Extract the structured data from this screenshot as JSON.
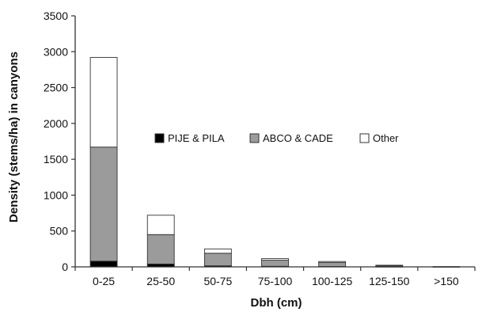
{
  "chart_data": {
    "type": "bar",
    "stacked": true,
    "title": "",
    "xlabel": "Dbh (cm)",
    "ylabel": "Density (stems/ha) in canyons",
    "ylim": [
      0,
      3500
    ],
    "yticks": [
      0,
      500,
      1000,
      1500,
      2000,
      2500,
      3000,
      3500
    ],
    "grid": false,
    "legend_position": "center-right",
    "categories": [
      "0-25",
      "25-50",
      "50-75",
      "75-100",
      "100-125",
      "125-150",
      ">150"
    ],
    "series": [
      {
        "name": "PIJE & PILA",
        "color": "#000000",
        "values": [
          80,
          40,
          15,
          8,
          5,
          3,
          0
        ]
      },
      {
        "name": "ABCO & CADE",
        "color": "#9b9b9b",
        "values": [
          1590,
          410,
          175,
          85,
          55,
          12,
          2
        ]
      },
      {
        "name": "Other",
        "color": "#ffffff",
        "values": [
          1250,
          270,
          60,
          22,
          15,
          8,
          1
        ]
      }
    ]
  }
}
